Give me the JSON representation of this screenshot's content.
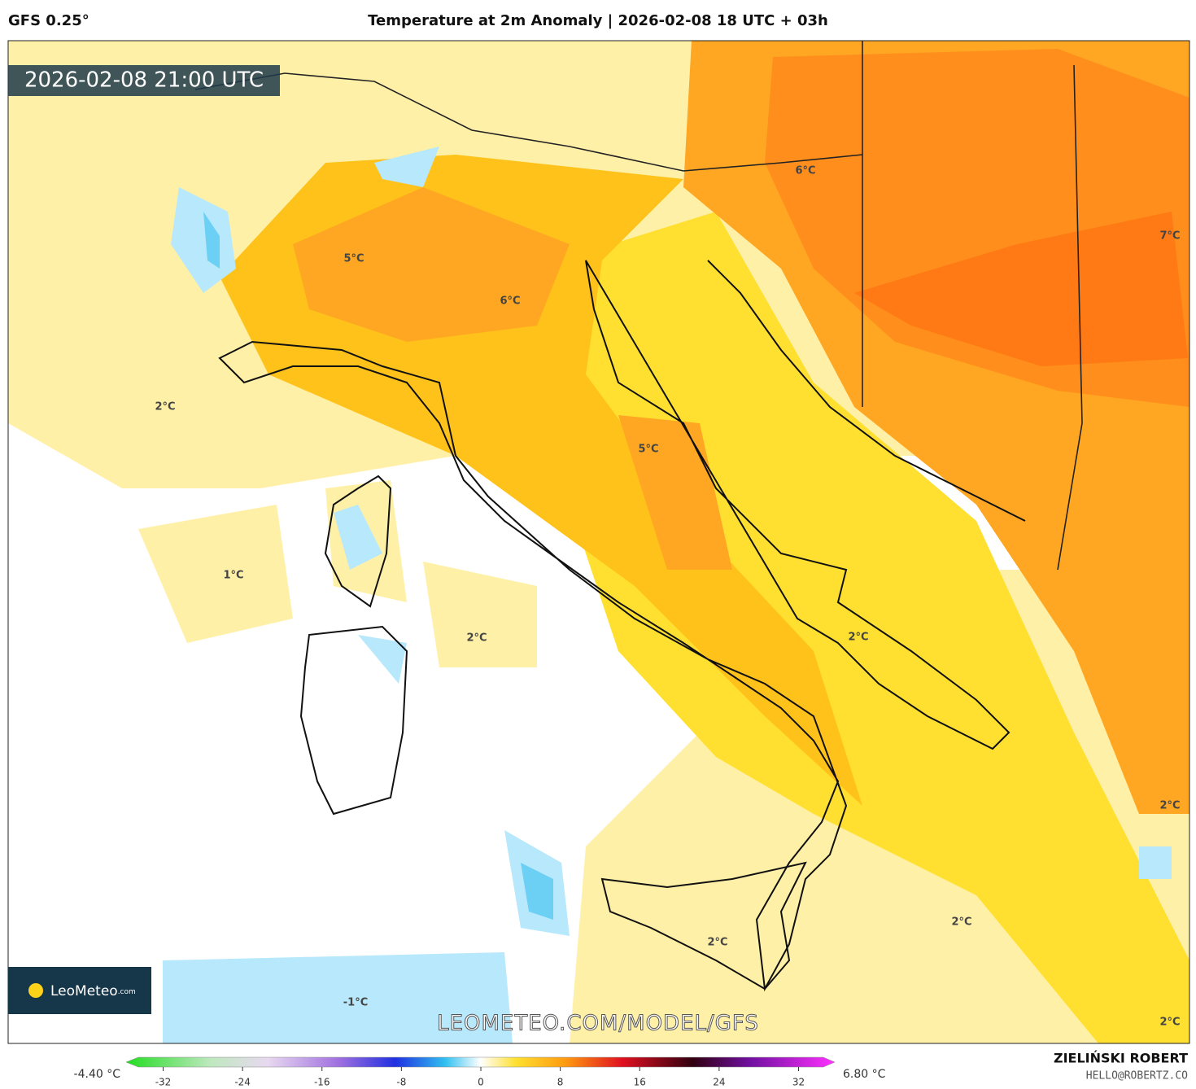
{
  "header": {
    "model": "GFS 0.25°",
    "title": "Temperature at 2m Anomaly | 2026-02-08 18 UTC + 03h"
  },
  "map": {
    "valid_time": "2026-02-08 21:00 UTC",
    "contour_labels": [
      "5°C",
      "6°C",
      "6°C",
      "7°C",
      "2°C",
      "5°C",
      "1°C",
      "2°C",
      "2°C",
      "2°C",
      "2°C",
      "-1°C",
      "2°C",
      "2°C"
    ],
    "logo": {
      "name": "LeoMeteo",
      "suffix": ".com"
    },
    "watermark": "LEOMETEO.COM/MODEL/GFS"
  },
  "colorbar": {
    "min_label": "-4.40 °C",
    "max_label": "6.80 °C",
    "lim": [
      -34.5,
      34.5
    ],
    "ticks": [
      -32,
      -24,
      -16,
      -8,
      0,
      8,
      16,
      24,
      32
    ]
  },
  "credits": {
    "author": "ZIELIŃSKI ROBERT",
    "email": "HELLO@ROBERTZ.CO"
  }
}
